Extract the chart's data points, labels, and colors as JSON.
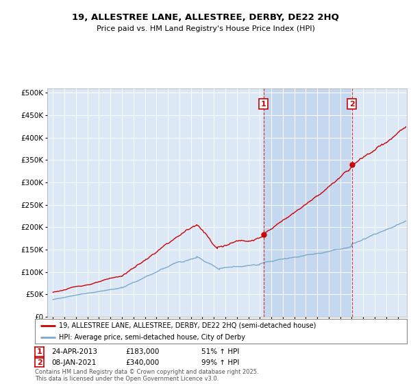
{
  "title": "19, ALLESTREE LANE, ALLESTREE, DERBY, DE22 2HQ",
  "subtitle": "Price paid vs. HM Land Registry's House Price Index (HPI)",
  "ylabel_ticks": [
    "£0",
    "£50K",
    "£100K",
    "£150K",
    "£200K",
    "£250K",
    "£300K",
    "£350K",
    "£400K",
    "£450K",
    "£500K"
  ],
  "ytick_values": [
    0,
    50000,
    100000,
    150000,
    200000,
    250000,
    300000,
    350000,
    400000,
    450000,
    500000
  ],
  "ylim": [
    0,
    510000
  ],
  "xlim_start": 1994.5,
  "xlim_end": 2025.8,
  "plot_bg_color": "#dce8f5",
  "shade_color": "#c5d8ef",
  "red_color": "#cc0000",
  "blue_color": "#7aaacc",
  "marker1_x": 2013.31,
  "marker1_y": 183000,
  "marker1_label": "1",
  "marker1_date": "24-APR-2013",
  "marker1_price": "£183,000",
  "marker1_hpi": "51% ↑ HPI",
  "marker2_x": 2021.02,
  "marker2_y": 340000,
  "marker2_label": "2",
  "marker2_date": "08-JAN-2021",
  "marker2_price": "£340,000",
  "marker2_hpi": "99% ↑ HPI",
  "legend_line1": "19, ALLESTREE LANE, ALLESTREE, DERBY, DE22 2HQ (semi-detached house)",
  "legend_line2": "HPI: Average price, semi-detached house, City of Derby",
  "footnote": "Contains HM Land Registry data © Crown copyright and database right 2025.\nThis data is licensed under the Open Government Licence v3.0.",
  "vline1_x": 2013.31,
  "vline2_x": 2021.02,
  "shade_x1": 2013.31,
  "shade_x2": 2021.02
}
